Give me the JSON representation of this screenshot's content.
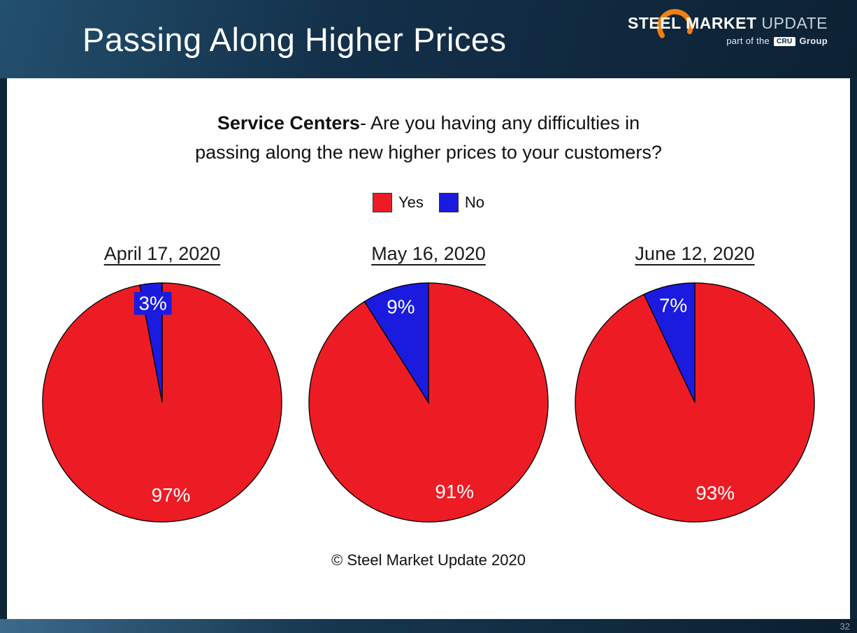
{
  "header": {
    "title": "Passing Along Higher Prices",
    "logo": {
      "steel": "STEEL",
      "market": "MARKET",
      "update": "UPDATE",
      "tagline_pre": "part of the",
      "cru": "CRU",
      "tagline_post": "Group",
      "swoosh_color": "#f07f13"
    }
  },
  "question": {
    "bold": "Service Centers",
    "line1_rest": "- Are you having any difficulties in",
    "line2": "passing along the new higher prices to your customers?"
  },
  "chart_data": {
    "type": "pie",
    "title": "Service Centers - Are you having any difficulties in passing along the new higher prices to your customers?",
    "legend": [
      {
        "label": "Yes",
        "color": "#ed1c24"
      },
      {
        "label": "No",
        "color": "#1b1be0"
      }
    ],
    "legend_position": "top-center",
    "start_angle_deg": 0,
    "direction": "clockwise",
    "slice_label_format": "{value}%",
    "charts": [
      {
        "title": "April 17, 2020",
        "slices": [
          {
            "label": "Yes",
            "value": 97
          },
          {
            "label": "No",
            "value": 3
          }
        ]
      },
      {
        "title": "May 16, 2020",
        "slices": [
          {
            "label": "Yes",
            "value": 91
          },
          {
            "label": "No",
            "value": 9
          }
        ]
      },
      {
        "title": "June 12, 2020",
        "slices": [
          {
            "label": "Yes",
            "value": 93
          },
          {
            "label": "No",
            "value": 7
          }
        ]
      }
    ]
  },
  "footer": {
    "copyright": "© Steel Market Update 2020",
    "page_number": "32"
  }
}
